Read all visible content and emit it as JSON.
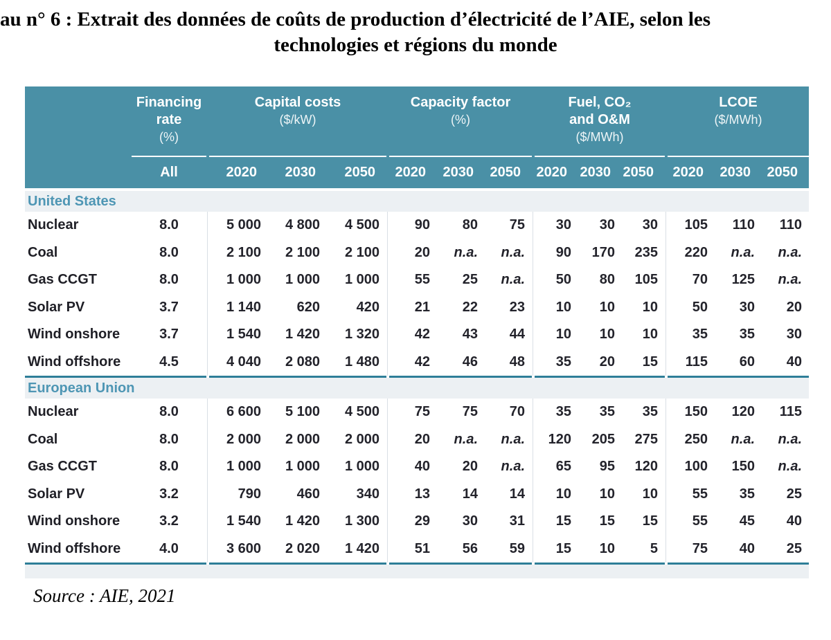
{
  "title": {
    "line1": "au n° 6 :  Extrait des données de coûts de production d’électricité de l’AIE, selon les",
    "line2": "technologies et régions du monde"
  },
  "source": "Source : AIE, 2021",
  "colors": {
    "header_bg": "#4A90A6",
    "header_text": "#FFFFFF",
    "section_band_bg": "#ECF0F3",
    "section_text": "#4E96B4",
    "rule_teal": "#2E7E98",
    "divider": "#D9DFE5",
    "data_text": "#23232B"
  },
  "table": {
    "header": {
      "groups": [
        {
          "id": "financing-rate",
          "title_lines": [
            "Financing",
            "rate"
          ],
          "unit": "(%)",
          "years": [
            "All"
          ]
        },
        {
          "id": "capital-costs",
          "title_lines": [
            "Capital costs"
          ],
          "unit": "($/kW)",
          "years": [
            "2020",
            "2030",
            "2050"
          ]
        },
        {
          "id": "capacity-factor",
          "title_lines": [
            "Capacity factor"
          ],
          "unit": "(%)",
          "years": [
            "2020",
            "2030",
            "2050"
          ]
        },
        {
          "id": "fuel-co2-om",
          "title_lines": [
            "Fuel, CO₂",
            "and O&M"
          ],
          "unit": "($/MWh)",
          "years": [
            "2020",
            "2030",
            "2050"
          ]
        },
        {
          "id": "lcoe",
          "title_lines": [
            "LCOE"
          ],
          "unit": "($/MWh)",
          "years": [
            "2020",
            "2030",
            "2050"
          ]
        }
      ]
    },
    "sections": [
      {
        "name": "United States",
        "rows": [
          {
            "label": "Nuclear",
            "financing": "8.0",
            "capital": [
              "5 000",
              "4 800",
              "4 500"
            ],
            "capacity": [
              "90",
              "80",
              "75"
            ],
            "fuel": [
              "30",
              "30",
              "30"
            ],
            "lcoe": [
              "105",
              "110",
              "110"
            ]
          },
          {
            "label": "Coal",
            "financing": "8.0",
            "capital": [
              "2 100",
              "2 100",
              "2 100"
            ],
            "capacity": [
              "20",
              "n.a.",
              "n.a."
            ],
            "fuel": [
              "90",
              "170",
              "235"
            ],
            "lcoe": [
              "220",
              "n.a.",
              "n.a."
            ]
          },
          {
            "label": "Gas CCGT",
            "financing": "8.0",
            "capital": [
              "1 000",
              "1 000",
              "1 000"
            ],
            "capacity": [
              "55",
              "25",
              "n.a."
            ],
            "fuel": [
              "50",
              "80",
              "105"
            ],
            "lcoe": [
              "70",
              "125",
              "n.a."
            ]
          },
          {
            "label": "Solar PV",
            "financing": "3.7",
            "capital": [
              "1 140",
              "620",
              "420"
            ],
            "capacity": [
              "21",
              "22",
              "23"
            ],
            "fuel": [
              "10",
              "10",
              "10"
            ],
            "lcoe": [
              "50",
              "30",
              "20"
            ]
          },
          {
            "label": "Wind onshore",
            "financing": "3.7",
            "capital": [
              "1 540",
              "1 420",
              "1 320"
            ],
            "capacity": [
              "42",
              "43",
              "44"
            ],
            "fuel": [
              "10",
              "10",
              "10"
            ],
            "lcoe": [
              "35",
              "35",
              "30"
            ]
          },
          {
            "label": "Wind offshore",
            "financing": "4.5",
            "capital": [
              "4 040",
              "2 080",
              "1 480"
            ],
            "capacity": [
              "42",
              "46",
              "48"
            ],
            "fuel": [
              "35",
              "20",
              "15"
            ],
            "lcoe": [
              "115",
              "60",
              "40"
            ]
          }
        ]
      },
      {
        "name": "European Union",
        "rows": [
          {
            "label": "Nuclear",
            "financing": "8.0",
            "capital": [
              "6 600",
              "5 100",
              "4 500"
            ],
            "capacity": [
              "75",
              "75",
              "70"
            ],
            "fuel": [
              "35",
              "35",
              "35"
            ],
            "lcoe": [
              "150",
              "120",
              "115"
            ]
          },
          {
            "label": "Coal",
            "financing": "8.0",
            "capital": [
              "2 000",
              "2 000",
              "2 000"
            ],
            "capacity": [
              "20",
              "n.a.",
              "n.a."
            ],
            "fuel": [
              "120",
              "205",
              "275"
            ],
            "lcoe": [
              "250",
              "n.a.",
              "n.a."
            ]
          },
          {
            "label": "Gas CCGT",
            "financing": "8.0",
            "capital": [
              "1 000",
              "1 000",
              "1 000"
            ],
            "capacity": [
              "40",
              "20",
              "n.a."
            ],
            "fuel": [
              "65",
              "95",
              "120"
            ],
            "lcoe": [
              "100",
              "150",
              "n.a."
            ]
          },
          {
            "label": "Solar PV",
            "financing": "3.2",
            "capital": [
              "790",
              "460",
              "340"
            ],
            "capacity": [
              "13",
              "14",
              "14"
            ],
            "fuel": [
              "10",
              "10",
              "10"
            ],
            "lcoe": [
              "55",
              "35",
              "25"
            ]
          },
          {
            "label": "Wind onshore",
            "financing": "3.2",
            "capital": [
              "1 540",
              "1 420",
              "1 300"
            ],
            "capacity": [
              "29",
              "30",
              "31"
            ],
            "fuel": [
              "15",
              "15",
              "15"
            ],
            "lcoe": [
              "55",
              "45",
              "40"
            ]
          },
          {
            "label": "Wind offshore",
            "financing": "4.0",
            "capital": [
              "3 600",
              "2 020",
              "1 420"
            ],
            "capacity": [
              "51",
              "56",
              "59"
            ],
            "fuel": [
              "15",
              "10",
              "5"
            ],
            "lcoe": [
              "75",
              "40",
              "25"
            ]
          }
        ]
      }
    ]
  }
}
